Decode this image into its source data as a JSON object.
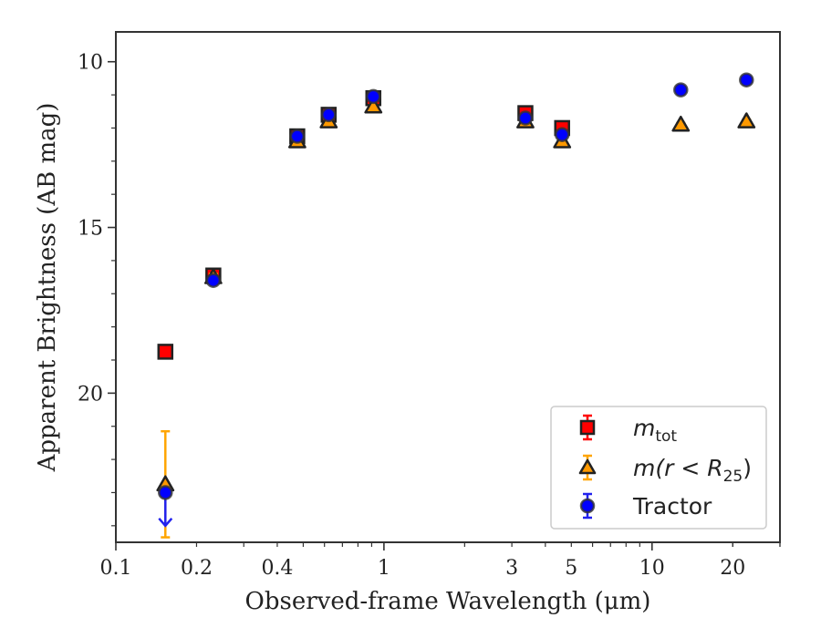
{
  "chart_data": {
    "type": "scatter",
    "xlabel": "Observed-frame Wavelength (μm)",
    "ylabel": "Apparent Brightness (AB mag)",
    "xscale": "log",
    "xlim": [
      0.1,
      30
    ],
    "ylim": [
      24.5,
      9.1
    ],
    "y_inverted": true,
    "grid": false,
    "legend_position": "lower-right",
    "x_ticks": [
      {
        "value": 0.1,
        "label": "0.1"
      },
      {
        "value": 0.2,
        "label": "0.2"
      },
      {
        "value": 0.4,
        "label": "0.4"
      },
      {
        "value": 1,
        "label": "1"
      },
      {
        "value": 3,
        "label": "3"
      },
      {
        "value": 5,
        "label": "5"
      },
      {
        "value": 10,
        "label": "10"
      },
      {
        "value": 20,
        "label": "20"
      }
    ],
    "y_ticks": [
      {
        "value": 10,
        "label": "10"
      },
      {
        "value": 15,
        "label": "15"
      },
      {
        "value": 20,
        "label": "20"
      }
    ],
    "series": [
      {
        "name": "m_tot",
        "legend_label": {
          "main": "m",
          "sub": "tot"
        },
        "marker": "square",
        "color": "#ff0000",
        "edge_color": "#222222",
        "x": [
          0.153,
          0.231,
          0.475,
          0.622,
          0.913,
          3.37,
          4.62
        ],
        "y": [
          18.75,
          16.45,
          12.25,
          11.6,
          11.1,
          11.55,
          12.0
        ],
        "yerr": [
          0.1,
          0.1,
          0.05,
          0.05,
          0.05,
          0.05,
          0.1
        ]
      },
      {
        "name": "m(r<R25)",
        "legend_label": {
          "main": "m(r < R",
          "sub": "25",
          "tail": ")"
        },
        "marker": "triangle",
        "color": "#ff9900",
        "edge_color": "#222222",
        "x": [
          0.153,
          0.231,
          0.475,
          0.622,
          0.913,
          3.37,
          4.62,
          12.8,
          22.5
        ],
        "y": [
          22.75,
          16.5,
          12.4,
          11.8,
          11.35,
          11.8,
          12.4,
          11.9,
          11.8
        ],
        "yerr": [
          1.6,
          0.1,
          0.05,
          0.05,
          0.05,
          0.05,
          0.1,
          0.05,
          0.05
        ]
      },
      {
        "name": "Tractor",
        "legend_label": {
          "main": "Tractor"
        },
        "marker": "circle",
        "color": "#0000ff",
        "edge_color": "#333333",
        "x": [
          0.153,
          0.231,
          0.475,
          0.622,
          0.913,
          3.37,
          4.62,
          12.8,
          22.5
        ],
        "y": [
          23.0,
          16.6,
          12.25,
          11.6,
          11.05,
          11.7,
          12.2,
          10.85,
          10.55
        ],
        "yerr": [
          0.1,
          0.1,
          0.05,
          0.05,
          0.05,
          0.05,
          0.1,
          0.05,
          0.05
        ],
        "upper_limit_x": 0.153,
        "upper_limit_arrow_to": 24.0
      }
    ]
  }
}
